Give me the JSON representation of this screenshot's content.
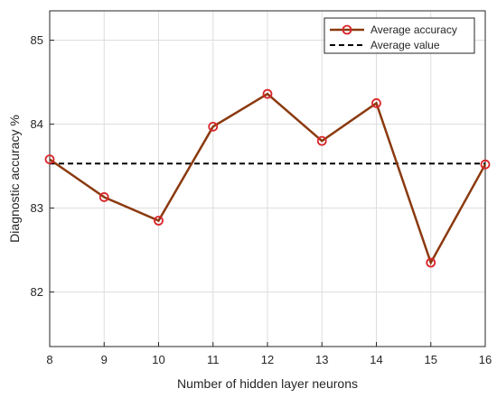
{
  "chart_data": {
    "type": "line",
    "title": "",
    "xlabel": "Number of hidden layer neurons",
    "ylabel": "Diagnostic accuracy %",
    "x": [
      8,
      9,
      10,
      11,
      12,
      13,
      14,
      15,
      16
    ],
    "xlim": [
      8,
      16
    ],
    "ylim": [
      81.35,
      85.35
    ],
    "xticks": [
      "8",
      "9",
      "10",
      "11",
      "12",
      "13",
      "14",
      "15",
      "16"
    ],
    "yticks": [
      "82",
      "83",
      "84",
      "85"
    ],
    "ytick_values": [
      82,
      83,
      84,
      85
    ],
    "grid": true,
    "legend_position": "top-right",
    "series": [
      {
        "name": "Average accuracy",
        "values": [
          83.58,
          83.13,
          82.85,
          83.97,
          84.36,
          83.8,
          84.25,
          82.35,
          83.52
        ],
        "color": "#8B3A0F",
        "marker_color": "#D9252A",
        "style": "solid-circle-markers"
      },
      {
        "name": "Average value",
        "value": 83.53,
        "color": "#000000",
        "style": "dashed"
      }
    ]
  }
}
